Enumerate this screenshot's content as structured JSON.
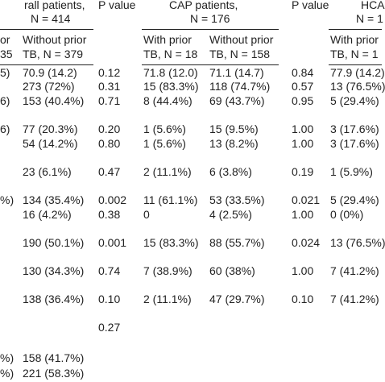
{
  "header": {
    "overall_title": "rall patients,",
    "overall_n": "N = 414",
    "p_value_1": "P value",
    "cap_title": "CAP patients,",
    "cap_n": "N = 176",
    "p_value_2": "P value",
    "hcap_title": "HCA",
    "hcap_n": "N = 1"
  },
  "subheader": [
    [
      "or",
      "35"
    ],
    [
      "Without prior",
      "TB, N = 379"
    ],
    [
      "With prior",
      "TB, N = 18"
    ],
    [
      "Without prior",
      "TB, N = 158"
    ],
    [
      "With prior",
      "TB, N = 1"
    ]
  ],
  "table": {
    "rows": [
      [
        "5)",
        "70.9 (14.2)",
        "0.12",
        "71.8 (12.0)",
        "71.1 (14.7)",
        "0.84",
        "77.9 (14.2)"
      ],
      [
        null,
        "273 (72%)",
        "0.31",
        "15 (83.3%)",
        "118 (74.7%)",
        "0.57",
        "13 (76.5%)"
      ],
      [
        "6)",
        "153 (40.4%)",
        "0.71",
        "8 (44.4%)",
        "69 (43.7%)",
        "0.95",
        "5 (29.4%)"
      ],
      [
        "6)",
        "77 (20.3%)",
        "0.20",
        "1 (5.6%)",
        "15 (9.5%)",
        "1.00",
        "3 (17.6%)"
      ],
      [
        null,
        "54 (14.2%)",
        "0.80",
        "1 (5.6%)",
        "13 (8.2%)",
        "1.00",
        "3 (17.6%)"
      ],
      [
        null,
        "23 (6.1%)",
        "0.47",
        "2 (11.1%)",
        "6 (3.8%)",
        "0.19",
        "1 (5.9%)"
      ],
      [
        "%)",
        "134 (35.4%)",
        "0.002",
        "11 (61.1%)",
        "53 (33.5%)",
        "0.021",
        "5 (29.4%)"
      ],
      [
        null,
        "16 (4.2%)",
        "0.38",
        "0",
        "4 (2.5%)",
        "1.00",
        "0 (0%)"
      ],
      [
        null,
        "190 (50.1%)",
        "0.001",
        "15 (83.3%)",
        "88 (55.7%)",
        "0.024",
        "13 (76.5%)"
      ],
      [
        null,
        "130 (34.3%)",
        "0.74",
        "7 (38.9%)",
        "60 (38%)",
        "1.00",
        "7 (41.2%)"
      ],
      [
        null,
        "138 (36.4%)",
        "0.10",
        "2 (11.1%)",
        "47 (29.7%)",
        "0.10",
        "7 (41.2%)"
      ],
      [
        null,
        null,
        "0.27",
        null,
        null,
        null,
        null
      ],
      [
        "%)",
        "158 (41.7%)",
        null,
        null,
        null,
        null,
        null
      ],
      [
        "%)",
        "221 (58.3%)",
        null,
        null,
        null,
        null,
        null
      ]
    ]
  }
}
